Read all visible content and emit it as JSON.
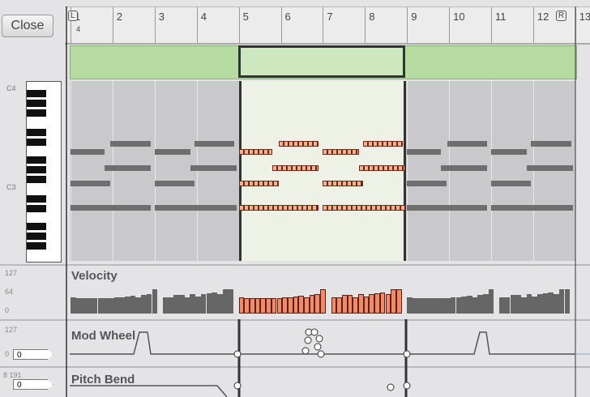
{
  "toolbar": {
    "close_label": "Close"
  },
  "ruler": {
    "bars": [
      "1",
      "2",
      "3",
      "4",
      "5",
      "6",
      "7",
      "8",
      "9",
      "10",
      "11",
      "12",
      "13"
    ],
    "left_locator": "L",
    "right_locator": "R",
    "playhead_label": "4"
  },
  "piano": {
    "c4_label": "C4",
    "c3_label": "C3"
  },
  "notes": {
    "rows": [
      "row1",
      "row2",
      "row3",
      "row4",
      "row5"
    ],
    "selected_loop": {
      "start_bar": 5,
      "end_bar": 9
    },
    "pattern": [
      [
        5.0,
        0.8,
        1
      ],
      [
        7.0,
        0.85,
        1
      ],
      [
        5.95,
        0.95,
        0
      ],
      [
        7.95,
        0.95,
        0
      ],
      [
        5.8,
        1.1,
        2
      ],
      [
        7.85,
        1.1,
        2
      ],
      [
        5.0,
        0.95,
        3
      ],
      [
        7.0,
        0.95,
        3
      ],
      [
        5.0,
        1.9,
        4
      ],
      [
        7.0,
        1.95,
        4
      ]
    ]
  },
  "velocity": {
    "label": "Velocity",
    "axis": [
      "127",
      "64",
      "0"
    ],
    "values": [
      60,
      58,
      58,
      57,
      58,
      57,
      58,
      58,
      60,
      62,
      64,
      66,
      60,
      70,
      72,
      90,
      0,
      60,
      60,
      70,
      70,
      60,
      72,
      64,
      74,
      76,
      78,
      72,
      90,
      92,
      0,
      60,
      62,
      58,
      60,
      64,
      66,
      70,
      70,
      72,
      74,
      76,
      78,
      80,
      90,
      80,
      94
    ]
  },
  "mod_wheel": {
    "label": "Mod Wheel",
    "axis": [
      "127",
      "0"
    ],
    "value": "0"
  },
  "pitch_bend": {
    "label": "Pitch Bend",
    "axis": [
      "8 191"
    ],
    "value": "0"
  },
  "colors": {
    "selected_note": "#f6b08e",
    "note_outline": "#6a2a18",
    "muted_note": "#6e6e6e",
    "overview": "#b6dba0"
  }
}
